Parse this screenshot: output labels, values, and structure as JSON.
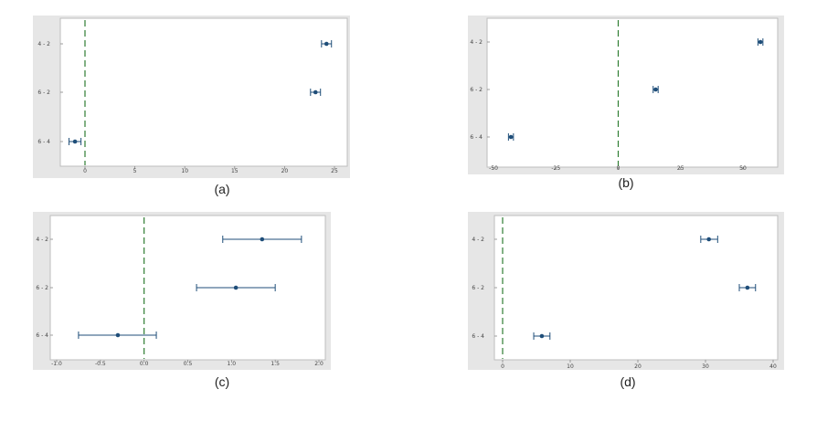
{
  "colors": {
    "outer_bg": "#e6e6e6",
    "plot_bg": "#ffffff",
    "frame": "#bdbdbd",
    "interval": "#1f4e79",
    "reference_line": "#2e7d32"
  },
  "chart_data": [
    {
      "type": "errorbar",
      "caption": "(a)",
      "categories": [
        "4 - 2",
        "6 - 2",
        "6 - 4"
      ],
      "estimates": [
        24.2,
        23.1,
        -1.0
      ],
      "lower": [
        23.7,
        22.6,
        -1.6
      ],
      "upper": [
        24.7,
        23.6,
        -0.4
      ],
      "reference_line": 0,
      "xlim": [
        -2,
        26
      ],
      "xticks": [
        0,
        5,
        10,
        15,
        20,
        25
      ],
      "xtick_labels": [
        "0",
        "5",
        "10",
        "15",
        "20",
        "25"
      ],
      "grid": false
    },
    {
      "type": "errorbar",
      "caption": "(b)",
      "categories": [
        "4 - 2",
        "6 - 2",
        "6 - 4"
      ],
      "estimates": [
        57,
        15,
        -43
      ],
      "lower": [
        56,
        14,
        -44
      ],
      "upper": [
        58,
        16,
        -42
      ],
      "reference_line": 0,
      "xlim": [
        -52,
        64
      ],
      "xticks": [
        -50,
        -25,
        0,
        25,
        50
      ],
      "xtick_labels": [
        "-50",
        "-25",
        "0",
        "25",
        "50"
      ],
      "grid": false
    },
    {
      "type": "errorbar",
      "caption": "(c)",
      "categories": [
        "4 - 2",
        "6 - 2",
        "6 - 4"
      ],
      "estimates": [
        1.35,
        1.05,
        -0.3
      ],
      "lower": [
        0.9,
        0.6,
        -0.75
      ],
      "upper": [
        1.8,
        1.5,
        0.14
      ],
      "reference_line": 0,
      "xlim": [
        -1.1,
        2.1
      ],
      "xticks": [
        -1.0,
        -0.5,
        0.0,
        0.5,
        1.0,
        1.5,
        2.0
      ],
      "xtick_labels": [
        "-1.0",
        "-0.5",
        "0.0",
        "0.5",
        "1.0",
        "1.5",
        "2.0"
      ],
      "grid": false
    },
    {
      "type": "errorbar",
      "caption": "(d)",
      "categories": [
        "4 - 2",
        "6 - 2",
        "6 - 4"
      ],
      "estimates": [
        30.5,
        36.2,
        5.8
      ],
      "lower": [
        29.3,
        35.0,
        4.6
      ],
      "upper": [
        31.8,
        37.4,
        7.0
      ],
      "reference_line": 0,
      "xlim": [
        -2,
        41
      ],
      "xticks": [
        0,
        10,
        20,
        30,
        40
      ],
      "xtick_labels": [
        "0",
        "10",
        "20",
        "30",
        "40"
      ],
      "grid": false
    }
  ]
}
